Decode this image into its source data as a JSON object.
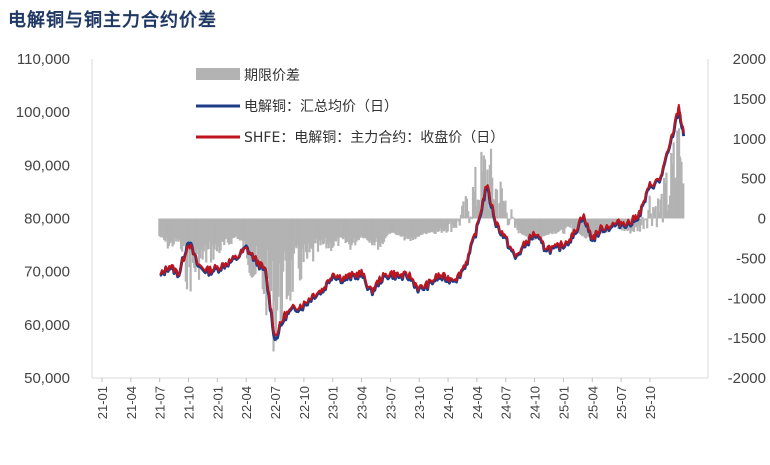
{
  "title": "电解铜与铜主力合约价差",
  "chart_data": {
    "type": "line",
    "title": "电解铜与铜主力合约价差",
    "x_ticks": [
      "21-01",
      "21-04",
      "21-07",
      "21-10",
      "22-01",
      "22-04",
      "22-07",
      "22-10",
      "23-01",
      "23-04",
      "23-07",
      "23-10",
      "24-01",
      "24-04",
      "24-07",
      "24-10",
      "25-01",
      "25-04",
      "25-07",
      "25-10"
    ],
    "left_axis": {
      "ylim": [
        50000,
        110000
      ],
      "ticks": [
        "50,000",
        "60,000",
        "70,000",
        "80,000",
        "90,000",
        "100,000",
        "110,000"
      ]
    },
    "right_axis": {
      "ylim": [
        -2000,
        2000
      ],
      "ticks": [
        "-2000",
        "-1500",
        "-1000",
        "-500",
        "0",
        "500",
        "1000",
        "1500",
        "2000"
      ]
    },
    "legend": [
      "期限价差",
      "电解铜：汇总均价（日）",
      "SHFE：电解铜：主力合约：收盘价（日）"
    ],
    "series": [
      {
        "name": "电解铜：汇总均价（日）",
        "axis": "left",
        "color": "#1f3c88",
        "points": [
          [
            "21-07",
            69000
          ],
          [
            "21-08",
            71000
          ],
          [
            "21-09",
            69500
          ],
          [
            "21-10",
            76000
          ],
          [
            "21-11",
            71000
          ],
          [
            "21-12",
            70000
          ],
          [
            "22-01",
            70500
          ],
          [
            "22-02",
            71500
          ],
          [
            "22-03",
            72500
          ],
          [
            "22-04",
            74500
          ],
          [
            "22-05",
            72000
          ],
          [
            "22-06",
            70000
          ],
          [
            "22-07",
            57000
          ],
          [
            "22-08",
            61500
          ],
          [
            "22-09",
            63000
          ],
          [
            "22-10",
            63500
          ],
          [
            "22-11",
            65500
          ],
          [
            "22-12",
            66500
          ],
          [
            "23-01",
            69500
          ],
          [
            "23-02",
            68500
          ],
          [
            "23-03",
            69000
          ],
          [
            "23-04",
            69500
          ],
          [
            "23-05",
            66000
          ],
          [
            "23-06",
            68500
          ],
          [
            "23-07",
            69500
          ],
          [
            "23-08",
            69000
          ],
          [
            "23-09",
            69000
          ],
          [
            "23-10",
            66500
          ],
          [
            "23-11",
            67500
          ],
          [
            "23-12",
            69000
          ],
          [
            "24-01",
            68500
          ],
          [
            "24-02",
            68800
          ],
          [
            "24-03",
            72000
          ],
          [
            "24-04",
            78000
          ],
          [
            "24-05",
            86000
          ],
          [
            "24-06",
            79000
          ],
          [
            "24-07",
            76000
          ],
          [
            "24-08",
            72500
          ],
          [
            "24-09",
            75000
          ],
          [
            "24-10",
            77000
          ],
          [
            "24-11",
            74500
          ],
          [
            "24-12",
            74000
          ],
          [
            "25-01",
            75000
          ],
          [
            "25-02",
            76500
          ],
          [
            "25-03",
            80500
          ],
          [
            "25-04",
            76000
          ],
          [
            "25-05",
            78000
          ],
          [
            "25-06",
            78500
          ],
          [
            "25-07",
            79000
          ],
          [
            "25-08",
            79000
          ],
          [
            "25-09",
            81000
          ],
          [
            "25-10",
            86000
          ],
          [
            "25-11",
            87000
          ],
          [
            "25-12",
            93000
          ],
          [
            "26-01",
            100500
          ],
          [
            "26-01b",
            95500
          ]
        ]
      },
      {
        "name": "SHFE：电解铜：主力合约：收盘价（日）",
        "axis": "left",
        "color": "#c0141c",
        "points": [
          [
            "21-07",
            69200
          ],
          [
            "21-08",
            71200
          ],
          [
            "21-09",
            69700
          ],
          [
            "21-10",
            75500
          ],
          [
            "21-11",
            71300
          ],
          [
            "21-12",
            70300
          ],
          [
            "22-01",
            70800
          ],
          [
            "22-02",
            71700
          ],
          [
            "22-03",
            72700
          ],
          [
            "22-04",
            74300
          ],
          [
            "22-05",
            72300
          ],
          [
            "22-06",
            70200
          ],
          [
            "22-07",
            57800
          ],
          [
            "22-08",
            61800
          ],
          [
            "22-09",
            63300
          ],
          [
            "22-10",
            64000
          ],
          [
            "22-11",
            65800
          ],
          [
            "22-12",
            66700
          ],
          [
            "23-01",
            69800
          ],
          [
            "23-02",
            68800
          ],
          [
            "23-03",
            69300
          ],
          [
            "23-04",
            69800
          ],
          [
            "23-05",
            66300
          ],
          [
            "23-06",
            68800
          ],
          [
            "23-07",
            69800
          ],
          [
            "23-08",
            69300
          ],
          [
            "23-09",
            69300
          ],
          [
            "23-10",
            66800
          ],
          [
            "23-11",
            67800
          ],
          [
            "23-12",
            69300
          ],
          [
            "24-01",
            68800
          ],
          [
            "24-02",
            69000
          ],
          [
            "24-03",
            72300
          ],
          [
            "24-04",
            78300
          ],
          [
            "24-05",
            86500
          ],
          [
            "24-06",
            79300
          ],
          [
            "24-07",
            76300
          ],
          [
            "24-08",
            72800
          ],
          [
            "24-09",
            75300
          ],
          [
            "24-10",
            77300
          ],
          [
            "24-11",
            74800
          ],
          [
            "24-12",
            74300
          ],
          [
            "25-01",
            75300
          ],
          [
            "25-02",
            76800
          ],
          [
            "25-03",
            80800
          ],
          [
            "25-04",
            76300
          ],
          [
            "25-05",
            78300
          ],
          [
            "25-06",
            78800
          ],
          [
            "25-07",
            79300
          ],
          [
            "25-08",
            79300
          ],
          [
            "25-09",
            81300
          ],
          [
            "25-10",
            86300
          ],
          [
            "25-11",
            87300
          ],
          [
            "25-12",
            93300
          ],
          [
            "26-01",
            101000
          ],
          [
            "26-01b",
            96000
          ]
        ]
      },
      {
        "name": "期限价差",
        "axis": "right",
        "type": "bar",
        "color": "#b3b3b3",
        "points": [
          [
            "21-07",
            -200
          ],
          [
            "21-08",
            -300
          ],
          [
            "21-09",
            -250
          ],
          [
            "21-10",
            -600
          ],
          [
            "21-11",
            -500
          ],
          [
            "21-12",
            -400
          ],
          [
            "22-01",
            -350
          ],
          [
            "22-02",
            -300
          ],
          [
            "22-03",
            -200
          ],
          [
            "22-04",
            -350
          ],
          [
            "22-05",
            -600
          ],
          [
            "22-06",
            -700
          ],
          [
            "22-07",
            -1000
          ],
          [
            "22-08",
            -800
          ],
          [
            "22-09",
            -600
          ],
          [
            "22-10",
            -500
          ],
          [
            "22-11",
            -400
          ],
          [
            "22-12",
            -300
          ],
          [
            "23-01",
            -300
          ],
          [
            "23-02",
            -250
          ],
          [
            "23-03",
            -300
          ],
          [
            "23-04",
            -200
          ],
          [
            "23-05",
            -250
          ],
          [
            "23-06",
            -300
          ],
          [
            "23-07",
            -150
          ],
          [
            "23-08",
            -200
          ],
          [
            "23-09",
            -250
          ],
          [
            "23-10",
            -200
          ],
          [
            "23-11",
            -150
          ],
          [
            "23-12",
            -150
          ],
          [
            "24-01",
            -100
          ],
          [
            "24-02",
            -50
          ],
          [
            "24-03",
            100
          ],
          [
            "24-04",
            300
          ],
          [
            "24-05",
            500
          ],
          [
            "24-06",
            300
          ],
          [
            "24-07",
            150
          ],
          [
            "24-08",
            -100
          ],
          [
            "24-09",
            -200
          ],
          [
            "24-10",
            -250
          ],
          [
            "24-11",
            -200
          ],
          [
            "24-12",
            -150
          ],
          [
            "25-01",
            -150
          ],
          [
            "25-02",
            -100
          ],
          [
            "25-03",
            -200
          ],
          [
            "25-04",
            -250
          ],
          [
            "25-05",
            -150
          ],
          [
            "25-06",
            -100
          ],
          [
            "25-07",
            -100
          ],
          [
            "25-08",
            -150
          ],
          [
            "25-09",
            -100
          ],
          [
            "25-10",
            150
          ],
          [
            "25-11",
            100
          ],
          [
            "25-12",
            300
          ],
          [
            "26-01",
            700
          ],
          [
            "26-01b",
            400
          ]
        ]
      }
    ]
  }
}
